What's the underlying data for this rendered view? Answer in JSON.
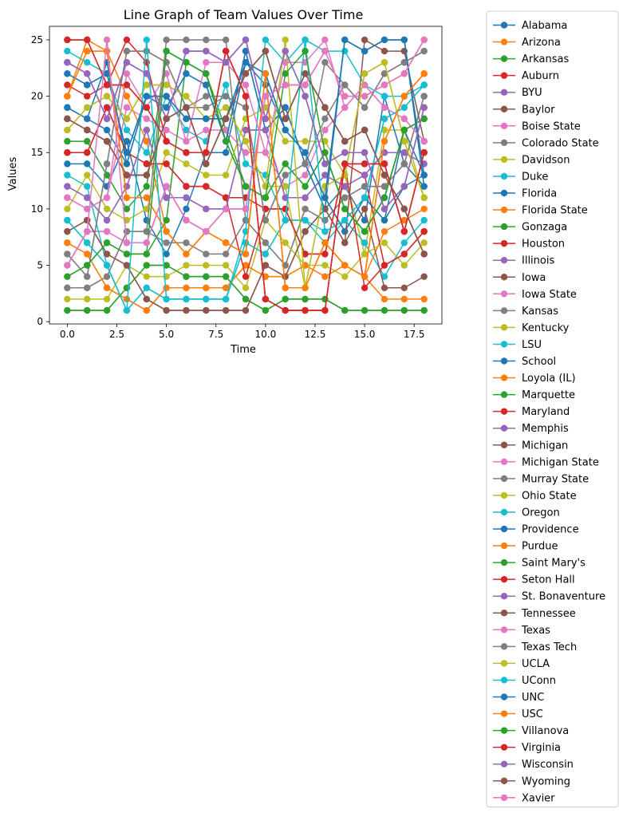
{
  "chart_data": {
    "type": "line",
    "title": "Line Graph of Team Values Over Time",
    "xlabel": "Time",
    "ylabel": "Values",
    "xlim": [
      -0.9,
      18.9
    ],
    "ylim": [
      -0.2,
      26.2
    ],
    "x_ticks": [
      0.0,
      2.5,
      5.0,
      7.5,
      10.0,
      12.5,
      15.0,
      17.5
    ],
    "x_tick_labels": [
      "0.0",
      "2.5",
      "5.0",
      "7.5",
      "10.0",
      "12.5",
      "15.0",
      "17.5"
    ],
    "y_ticks": [
      0,
      5,
      10,
      15,
      20,
      25
    ],
    "y_tick_labels": [
      "0",
      "5",
      "10",
      "15",
      "20",
      "25"
    ],
    "grid": false,
    "legend_position": "outside-right",
    "x": [
      0,
      1,
      2,
      3,
      4,
      5,
      6,
      7,
      8,
      9,
      10,
      11,
      12,
      13,
      14,
      15,
      16,
      17,
      18
    ],
    "series": [
      {
        "name": "Alabama",
        "color": "#1f77b4",
        "values": [
          14,
          14,
          12,
          16,
          9,
          6,
          10,
          15,
          15,
          23,
          21,
          17,
          15,
          11,
          8,
          11,
          9,
          12,
          13
        ]
      },
      {
        "name": "Arizona",
        "color": "#ff7f0e",
        "values": [
          20,
          25,
          24,
          20,
          16,
          8,
          6,
          8,
          7,
          6,
          22,
          3,
          3,
          7,
          5,
          4,
          16,
          20,
          22
        ]
      },
      {
        "name": "Arkansas",
        "color": "#2ca02c",
        "values": [
          16,
          16,
          13,
          10,
          12,
          24,
          23,
          22,
          17,
          12,
          11,
          14,
          12,
          15,
          10,
          8,
          11,
          17,
          18
        ]
      },
      {
        "name": "Auburn",
        "color": "#d62728",
        "values": [
          21,
          20,
          21,
          25,
          23,
          16,
          15,
          15,
          24,
          20,
          2,
          1,
          1,
          1,
          14,
          14,
          14,
          8,
          15
        ]
      },
      {
        "name": "BYU",
        "color": "#9467bd",
        "values": [
          23,
          22,
          18,
          23,
          22,
          18,
          24,
          24,
          23,
          25,
          18,
          24,
          20,
          14,
          15,
          15,
          10,
          12,
          19
        ]
      },
      {
        "name": "Baylor",
        "color": "#8c564b",
        "values": [
          18,
          17,
          16,
          13,
          13,
          18,
          19,
          14,
          18,
          22,
          24,
          18,
          22,
          19,
          16,
          17,
          13,
          10,
          6
        ]
      },
      {
        "name": "Boise State",
        "color": "#e377c2",
        "values": [
          5,
          8,
          8,
          7,
          7,
          12,
          9,
          8,
          10,
          10,
          20,
          21,
          21,
          24,
          20,
          20,
          21,
          22,
          25
        ]
      },
      {
        "name": "Colorado State",
        "color": "#7f7f7f",
        "values": [
          3,
          3,
          4,
          8,
          8,
          7,
          7,
          6,
          6,
          9,
          7,
          5,
          10,
          9,
          11,
          12,
          12,
          14,
          20
        ]
      },
      {
        "name": "Davidson",
        "color": "#bcbd22",
        "values": [
          10,
          13,
          10,
          9,
          10,
          15,
          14,
          13,
          13,
          18,
          19,
          16,
          16,
          16,
          13,
          6,
          17,
          17,
          11
        ]
      },
      {
        "name": "Duke",
        "color": "#17becf",
        "values": [
          24,
          23,
          22,
          17,
          15,
          20,
          17,
          16,
          21,
          14,
          13,
          9,
          9,
          7,
          9,
          7,
          4,
          7,
          9
        ]
      },
      {
        "name": "Florida",
        "color": "#1f77b4",
        "values": [
          19,
          18,
          17,
          14,
          20,
          19,
          22,
          21,
          16,
          24,
          17,
          19,
          14,
          10,
          12,
          9,
          20,
          14,
          12
        ]
      },
      {
        "name": "Florida State",
        "color": "#ff7f0e",
        "values": [
          7,
          6,
          3,
          2,
          1,
          3,
          3,
          3,
          3,
          5,
          4,
          4,
          5,
          4,
          5,
          4,
          8,
          9,
          10
        ]
      },
      {
        "name": "Gonzaga",
        "color": "#2ca02c",
        "values": [
          1,
          1,
          1,
          3,
          5,
          5,
          4,
          4,
          4,
          2,
          1,
          2,
          2,
          2,
          1,
          1,
          1,
          1,
          1
        ]
      },
      {
        "name": "Houston",
        "color": "#d62728",
        "values": [
          15,
          15,
          19,
          15,
          14,
          14,
          12,
          12,
          11,
          11,
          10,
          10,
          6,
          6,
          14,
          13,
          5,
          6,
          8
        ]
      },
      {
        "name": "Illinois",
        "color": "#9467bd",
        "values": [
          12,
          11,
          9,
          12,
          17,
          11,
          11,
          10,
          10,
          17,
          17,
          11,
          11,
          13,
          12,
          13,
          15,
          15,
          14
        ]
      },
      {
        "name": "Iowa",
        "color": "#8c564b",
        "values": [
          8,
          9,
          6,
          5,
          2,
          1,
          1,
          1,
          1,
          1,
          5,
          4,
          8,
          10,
          7,
          10,
          3,
          3,
          4
        ]
      },
      {
        "name": "Iowa State",
        "color": "#e377c2",
        "values": [
          11,
          10,
          11,
          19,
          18,
          17,
          16,
          17,
          17,
          15,
          15,
          12,
          13,
          17,
          19,
          21,
          19,
          18,
          16
        ]
      },
      {
        "name": "Kansas",
        "color": "#7f7f7f",
        "values": [
          6,
          4,
          14,
          24,
          24,
          23,
          19,
          19,
          20,
          19,
          9,
          13,
          14,
          18,
          21,
          19,
          22,
          23,
          24
        ]
      },
      {
        "name": "Kentucky",
        "color": "#bcbd22",
        "values": [
          17,
          19,
          20,
          18,
          21,
          21,
          20,
          18,
          19,
          16,
          12,
          12,
          3,
          12,
          13,
          22,
          23,
          16,
          11
        ]
      },
      {
        "name": "LSU",
        "color": "#17becf",
        "values": [
          9,
          7,
          5,
          1,
          3,
          2,
          2,
          2,
          2,
          7,
          6,
          9,
          9,
          8,
          9,
          11,
          18,
          19,
          21
        ]
      },
      {
        "name": "School",
        "color": "#1f77b4",
        "values": [
          22,
          21,
          22,
          15,
          20,
          20,
          18,
          18,
          18,
          23,
          22,
          17,
          15,
          11,
          8,
          11,
          9,
          17,
          13
        ]
      },
      {
        "name": "Loyola (IL)",
        "color": "#ff7f0e",
        "values": [
          20,
          24,
          24,
          11,
          11,
          8,
          6,
          8,
          7,
          6,
          22,
          3,
          3,
          7,
          5,
          4,
          16,
          20,
          22
        ]
      },
      {
        "name": "Marquette",
        "color": "#2ca02c",
        "values": [
          4,
          5,
          7,
          6,
          6,
          9,
          23,
          22,
          16,
          12,
          11,
          14,
          12,
          15,
          10,
          8,
          11,
          17,
          18
        ]
      },
      {
        "name": "Maryland",
        "color": "#d62728",
        "values": [
          25,
          25,
          21,
          21,
          19,
          16,
          15,
          15,
          24,
          20,
          2,
          1,
          1,
          1,
          14,
          14,
          14,
          8,
          15
        ]
      },
      {
        "name": "Memphis",
        "color": "#9467bd",
        "values": [
          23,
          22,
          18,
          23,
          22,
          18,
          24,
          24,
          23,
          25,
          18,
          24,
          20,
          14,
          15,
          15,
          10,
          12,
          19
        ]
      },
      {
        "name": "Michigan",
        "color": "#8c564b",
        "values": [
          18,
          17,
          16,
          13,
          13,
          18,
          19,
          14,
          18,
          22,
          24,
          18,
          22,
          19,
          16,
          17,
          13,
          10,
          6
        ]
      },
      {
        "name": "Michigan State",
        "color": "#e377c2",
        "values": [
          5,
          8,
          8,
          7,
          7,
          12,
          9,
          8,
          10,
          10,
          20,
          21,
          21,
          24,
          20,
          20,
          21,
          22,
          25
        ]
      },
      {
        "name": "Murray State",
        "color": "#7f7f7f",
        "values": [
          3,
          3,
          4,
          8,
          8,
          25,
          25,
          25,
          25,
          9,
          7,
          5,
          10,
          9,
          11,
          12,
          12,
          14,
          20
        ]
      },
      {
        "name": "Ohio State",
        "color": "#bcbd22",
        "values": [
          2,
          2,
          2,
          5,
          4,
          4,
          5,
          5,
          5,
          3,
          9,
          7,
          5,
          5,
          4,
          6,
          7,
          5,
          7
        ]
      },
      {
        "name": "Oregon",
        "color": "#17becf",
        "values": [
          13,
          12,
          5,
          1,
          3,
          2,
          2,
          2,
          2,
          8,
          25,
          23,
          25,
          24,
          24,
          21,
          20,
          20,
          21
        ]
      },
      {
        "name": "Providence",
        "color": "#1f77b4",
        "values": [
          19,
          18,
          23,
          14,
          20,
          19,
          22,
          21,
          16,
          24,
          17,
          19,
          14,
          10,
          25,
          24,
          25,
          25,
          12
        ]
      },
      {
        "name": "Purdue",
        "color": "#ff7f0e",
        "values": [
          7,
          6,
          3,
          2,
          1,
          3,
          3,
          3,
          3,
          5,
          4,
          4,
          5,
          4,
          5,
          4,
          2,
          2,
          2
        ]
      },
      {
        "name": "Saint Mary's",
        "color": "#2ca02c",
        "values": [
          1,
          1,
          1,
          3,
          5,
          5,
          4,
          4,
          4,
          2,
          1,
          2,
          2,
          2,
          1,
          1,
          1,
          1,
          1
        ]
      },
      {
        "name": "Seton Hall",
        "color": "#d62728",
        "values": [
          15,
          15,
          19,
          15,
          14,
          14,
          12,
          12,
          11,
          4,
          10,
          10,
          6,
          6,
          14,
          3,
          5,
          6,
          8
        ]
      },
      {
        "name": "St. Bonaventure",
        "color": "#9467bd",
        "values": [
          12,
          11,
          9,
          12,
          17,
          11,
          11,
          10,
          10,
          17,
          17,
          11,
          11,
          13,
          12,
          13,
          15,
          15,
          14
        ]
      },
      {
        "name": "Tennessee",
        "color": "#8c564b",
        "values": [
          8,
          9,
          6,
          5,
          2,
          1,
          1,
          1,
          1,
          1,
          5,
          4,
          8,
          10,
          7,
          25,
          24,
          24,
          16
        ]
      },
      {
        "name": "Texas",
        "color": "#e377c2",
        "values": [
          11,
          10,
          11,
          22,
          19,
          22,
          16,
          23,
          23,
          21,
          15,
          23,
          23,
          25,
          19,
          21,
          19,
          18,
          16
        ]
      },
      {
        "name": "Texas Tech",
        "color": "#7f7f7f",
        "values": [
          6,
          4,
          14,
          24,
          24,
          23,
          19,
          20,
          20,
          19,
          9,
          13,
          14,
          23,
          21,
          19,
          22,
          23,
          24
        ]
      },
      {
        "name": "UCLA",
        "color": "#bcbd22",
        "values": [
          17,
          19,
          20,
          18,
          21,
          21,
          20,
          18,
          19,
          16,
          12,
          25,
          3,
          12,
          13,
          22,
          23,
          16,
          11
        ]
      },
      {
        "name": "UConn",
        "color": "#17becf",
        "values": [
          9,
          7,
          5,
          1,
          25,
          2,
          2,
          2,
          2,
          7,
          6,
          9,
          25,
          8,
          9,
          11,
          18,
          19,
          21
        ]
      },
      {
        "name": "UNC",
        "color": "#1f77b4",
        "values": [
          22,
          21,
          22,
          15,
          20,
          20,
          18,
          18,
          18,
          23,
          22,
          17,
          15,
          11,
          25,
          24,
          25,
          25,
          13
        ]
      },
      {
        "name": "USC",
        "color": "#ff7f0e",
        "values": [
          20,
          24,
          24,
          11,
          11,
          8,
          6,
          8,
          7,
          6,
          22,
          3,
          3,
          7,
          5,
          4,
          16,
          20,
          22
        ]
      },
      {
        "name": "Villanova",
        "color": "#2ca02c",
        "values": [
          4,
          5,
          7,
          6,
          6,
          24,
          23,
          22,
          16,
          12,
          11,
          22,
          24,
          15,
          10,
          8,
          11,
          17,
          18
        ]
      },
      {
        "name": "Virginia",
        "color": "#d62728",
        "values": [
          25,
          25,
          21,
          21,
          19,
          16,
          15,
          15,
          24,
          20,
          2,
          1,
          1,
          1,
          14,
          14,
          14,
          8,
          15
        ]
      },
      {
        "name": "Wisconsin",
        "color": "#9467bd",
        "values": [
          23,
          22,
          18,
          23,
          22,
          18,
          24,
          24,
          23,
          25,
          18,
          24,
          20,
          14,
          15,
          15,
          10,
          12,
          19
        ]
      },
      {
        "name": "Wyoming",
        "color": "#8c564b",
        "values": [
          18,
          17,
          16,
          13,
          13,
          18,
          19,
          14,
          18,
          22,
          24,
          18,
          22,
          19,
          16,
          17,
          13,
          10,
          6
        ]
      },
      {
        "name": "Xavier",
        "color": "#e377c2",
        "values": [
          5,
          8,
          25,
          7,
          7,
          12,
          9,
          8,
          10,
          10,
          20,
          21,
          21,
          24,
          20,
          20,
          21,
          22,
          25
        ]
      }
    ]
  }
}
